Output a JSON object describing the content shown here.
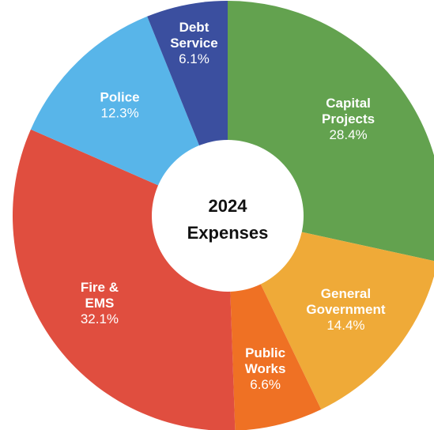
{
  "chart_data": {
    "type": "pie",
    "center_label": {
      "line1": "2024",
      "line2": "Expenses"
    },
    "slices": [
      {
        "label_lines": [
          "Capital",
          "Projects"
        ],
        "value": 28.4,
        "value_label": "28.4%",
        "color": "#63a24f"
      },
      {
        "label_lines": [
          "General",
          "Government"
        ],
        "value": 14.4,
        "value_label": "14.4%",
        "color": "#efaa38"
      },
      {
        "label_lines": [
          "Public",
          "Works"
        ],
        "value": 6.6,
        "value_label": "6.6%",
        "color": "#ef7124"
      },
      {
        "label_lines": [
          "Fire &",
          "EMS"
        ],
        "value": 32.1,
        "value_label": "32.1%",
        "color": "#e04e3f"
      },
      {
        "label_lines": [
          "Police"
        ],
        "value": 12.3,
        "value_label": "12.3%",
        "color": "#58b5e9"
      },
      {
        "label_lines": [
          "Debt",
          "Service"
        ],
        "value": 6.1,
        "value_label": "6.1%",
        "color": "#3b4f9f"
      }
    ]
  }
}
